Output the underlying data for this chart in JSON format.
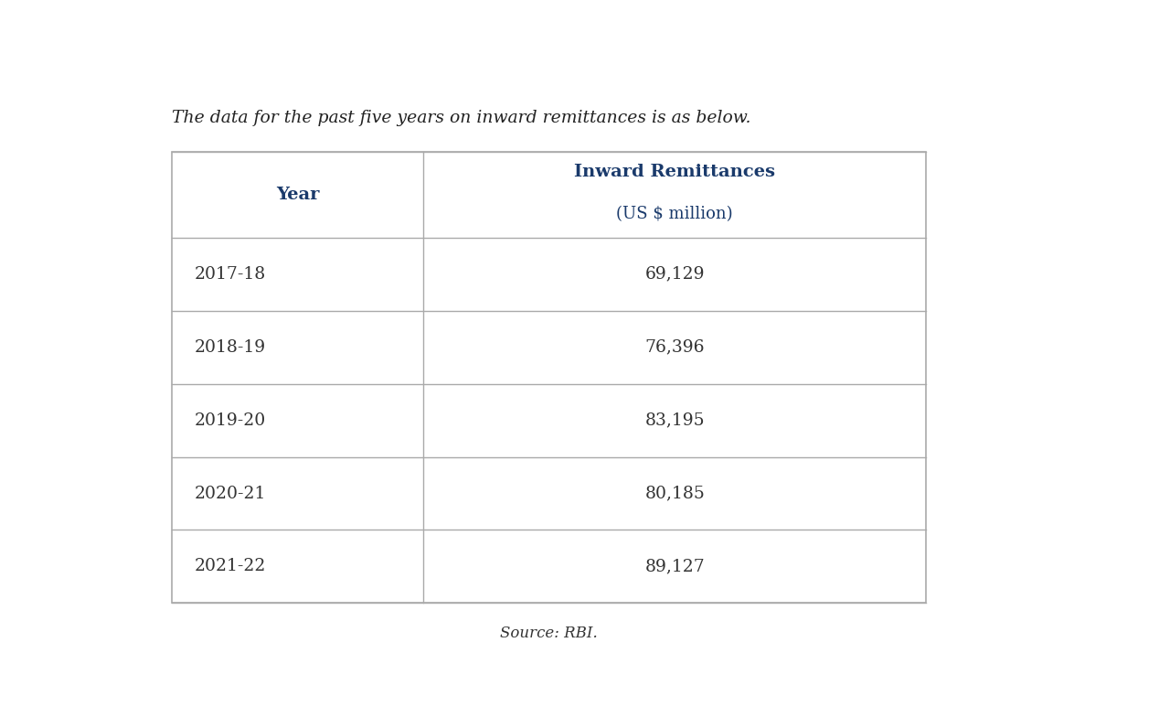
{
  "title": "The data for the past five years on inward remittances is as below.",
  "col1_header": "Year",
  "col2_header": "Inward Remittances",
  "col2_subheader": "(US $ million)",
  "rows": [
    [
      "2017-18",
      "69,129"
    ],
    [
      "2018-19",
      "76,396"
    ],
    [
      "2019-20",
      "83,195"
    ],
    [
      "2020-21",
      "80,185"
    ],
    [
      "2021-22",
      "89,127"
    ]
  ],
  "source": "Source: RBI.",
  "bg_color": "#ffffff",
  "border_color": "#aaaaaa",
  "header_text_color": "#1a3a6b",
  "data_text_color": "#333333",
  "title_color": "#222222",
  "source_color": "#333333",
  "title_fontsize": 13.5,
  "header_fontsize": 14,
  "data_fontsize": 13.5,
  "source_fontsize": 12
}
